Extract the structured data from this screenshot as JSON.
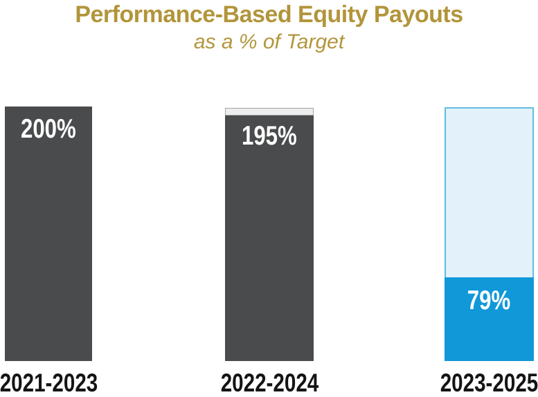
{
  "header": {
    "title": "Performance-Based Equity Payouts",
    "subtitle": "as a % of Target"
  },
  "chart_data": {
    "type": "bar",
    "title": "Performance-Based Equity Payouts",
    "subtitle": "as a % of Target",
    "unit": "percent of target",
    "ylim": [
      0,
      200
    ],
    "grid": false,
    "legend": false,
    "axes_shown": false,
    "categories": [
      "2021-2023",
      "2022-2024",
      "2023-2025"
    ],
    "values": [
      200,
      195,
      79
    ],
    "bars": [
      {
        "category": "2021-2023",
        "value": 200,
        "value_label": "200%",
        "fill_color": "#4A4B4D",
        "style": "solid"
      },
      {
        "category": "2022-2024",
        "value": 195,
        "value_label": "195%",
        "fill_color": "#4A4B4D",
        "style": "solid-with-gap-cap",
        "gap_cap_color": "#EDEDED",
        "gap_cap_border_color": "#A3A3A3"
      },
      {
        "category": "2023-2025",
        "value": 79,
        "value_label": "79%",
        "fill_color": "#1198D9",
        "style": "partial-fill-in-target-outline",
        "outline_fill_color": "#E3F2FA",
        "outline_border_color": "#61BDE1"
      }
    ]
  },
  "colors": {
    "title_gold": "#B2953B",
    "bar_dark_gray": "#4A4B4D",
    "gap_cap_light_gray": "#EDEDED",
    "gap_cap_border_gray": "#A3A3A3",
    "target_outline_light_blue": "#E3F2FA",
    "target_outline_border_blue": "#61BDE1",
    "payout_blue": "#1198D9",
    "value_label_white": "#FFFFFF",
    "category_label_black": "#141414",
    "background": "#FFFFFF"
  }
}
